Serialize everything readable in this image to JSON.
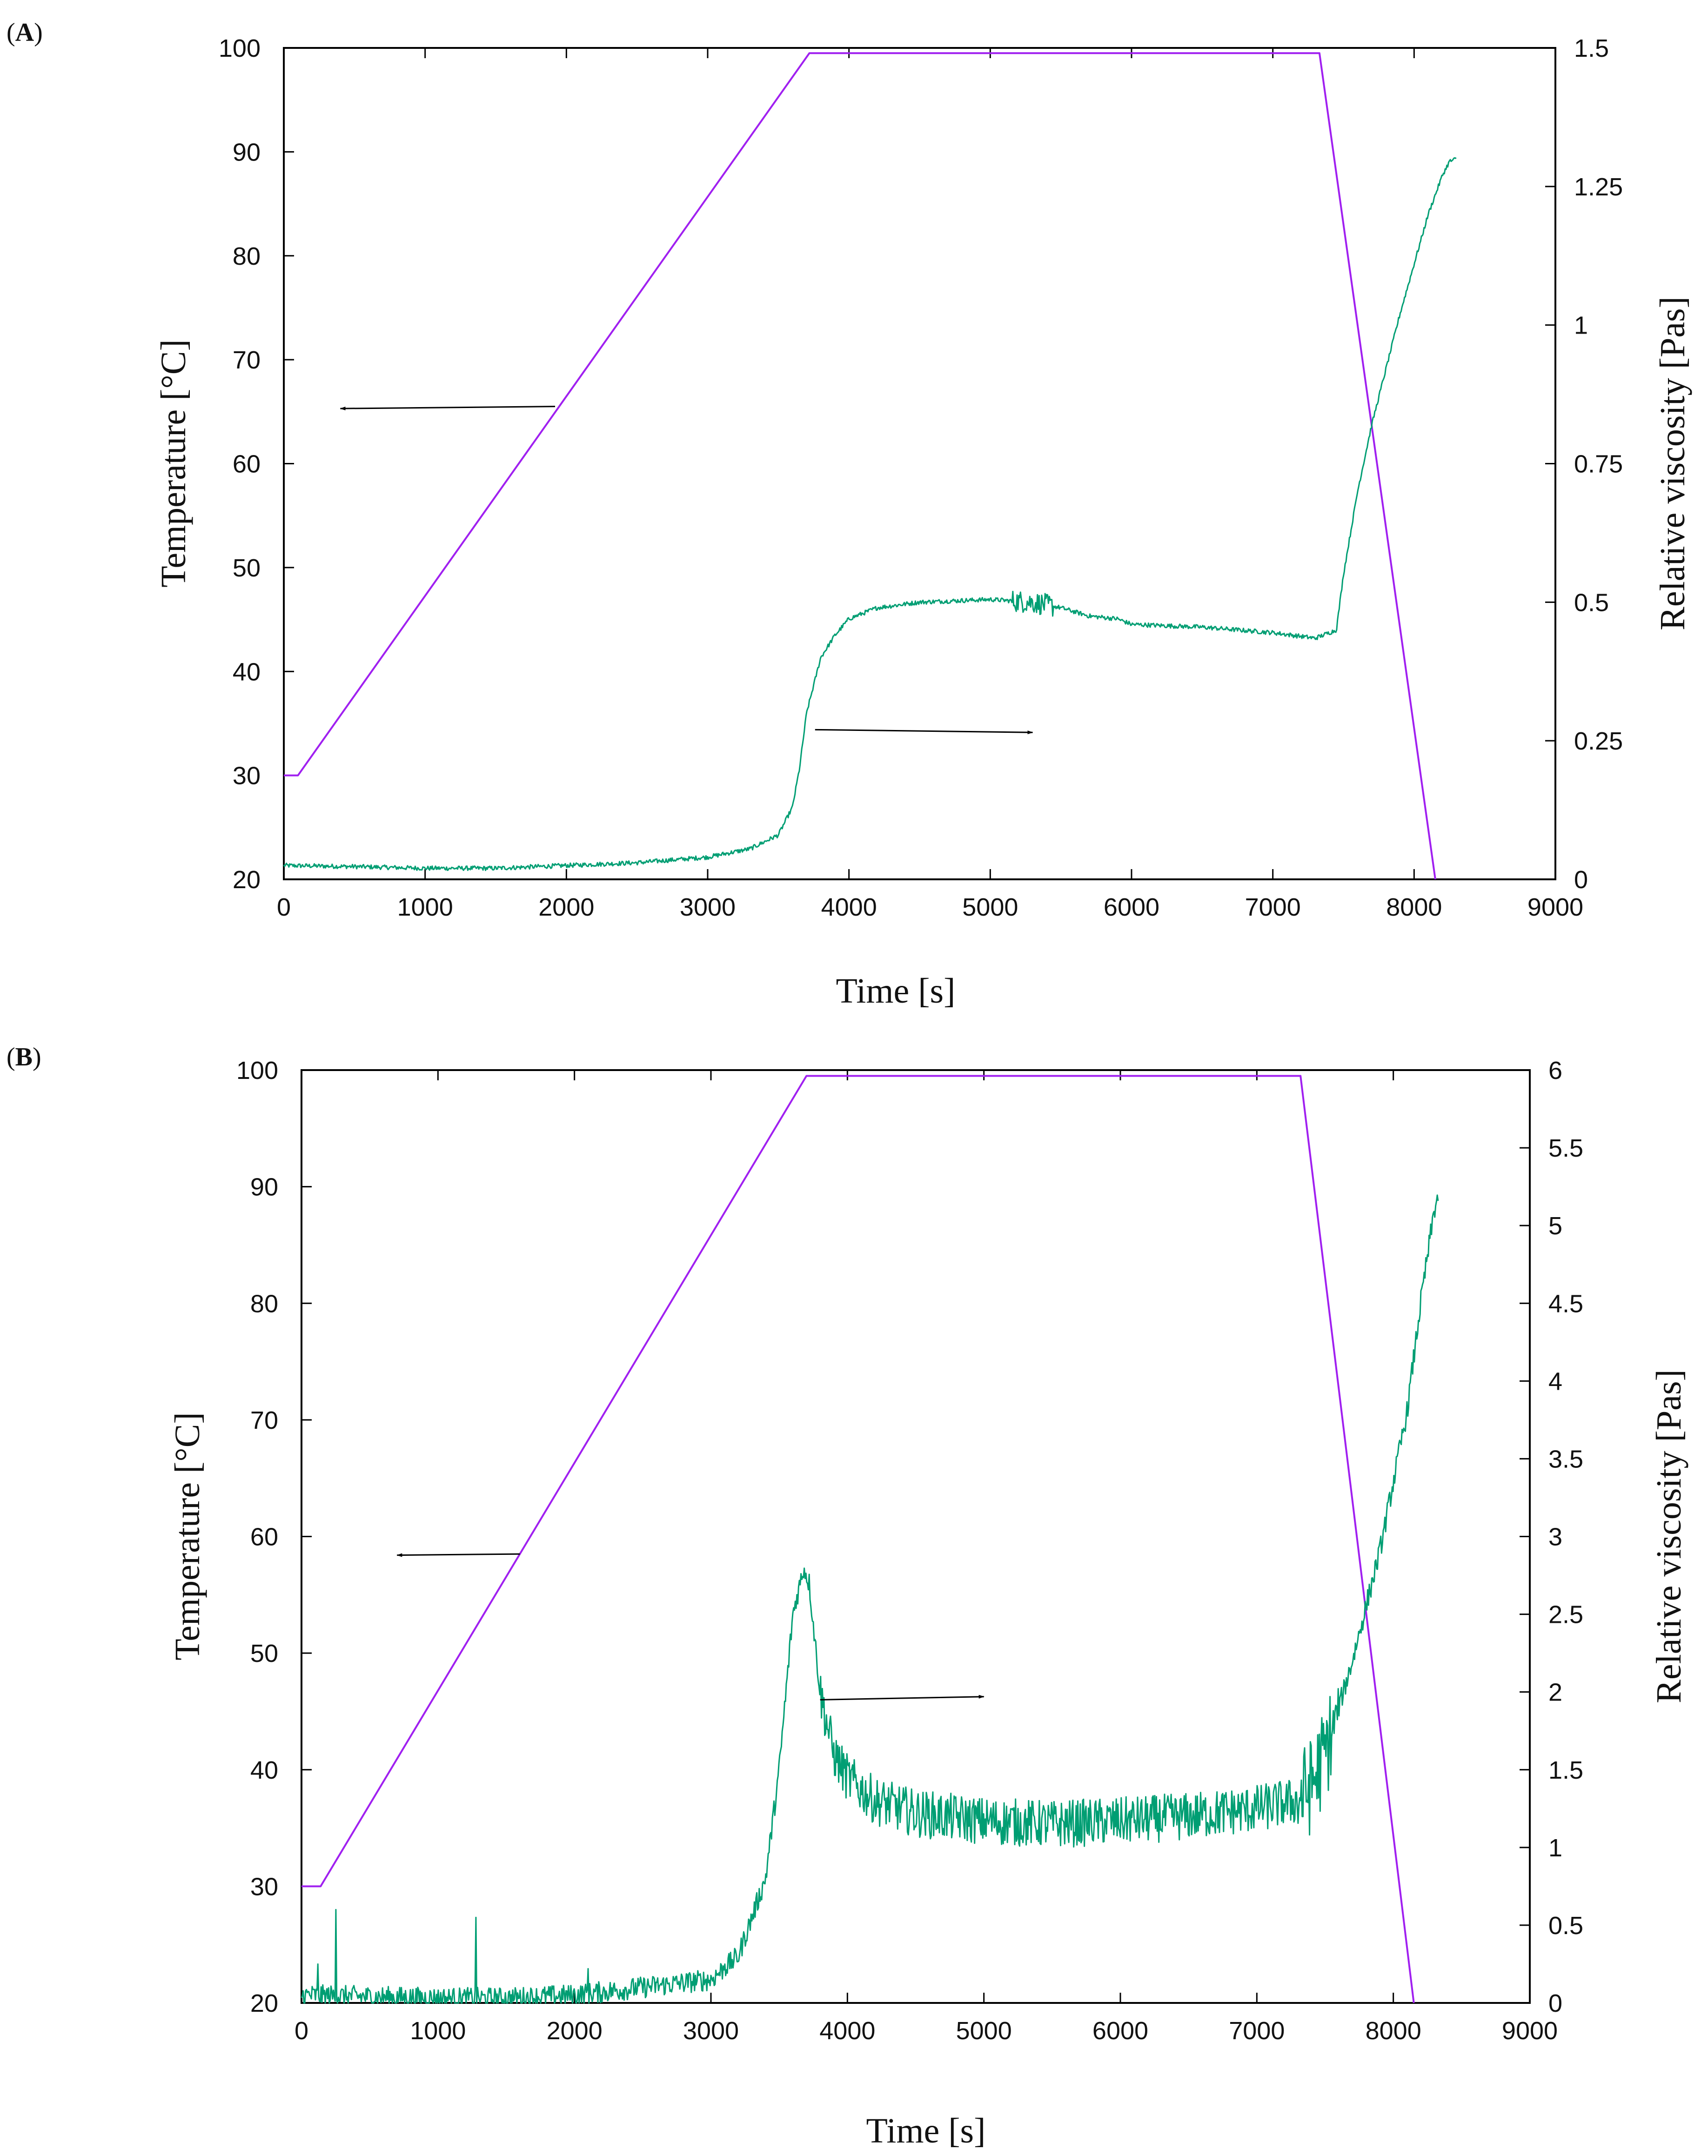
{
  "colors": {
    "temperature": "#a020f0",
    "viscosity": "#009e73",
    "axis": "#000000",
    "arrow": "#000000"
  },
  "chart_data": [
    {
      "panel": "A",
      "type": "line",
      "xlabel": "Time [s]",
      "ylabel_left": "Temperature [°C]",
      "ylabel_right": "Relative viscosity [Pas]",
      "xlim": [
        0,
        9000
      ],
      "ylim_left": [
        20,
        100
      ],
      "ylim_right": [
        0,
        1.5
      ],
      "x_ticks": [
        "0",
        "1000",
        "2000",
        "3000",
        "4000",
        "5000",
        "6000",
        "7000",
        "8000",
        "9000"
      ],
      "y_left_ticks": [
        "20",
        "30",
        "40",
        "50",
        "60",
        "70",
        "80",
        "90",
        "100"
      ],
      "y_right_ticks": [
        "0",
        "0.25",
        "0.5",
        "0.75",
        "1",
        "1.25",
        "1.5"
      ],
      "series": [
        {
          "name": "Temperature",
          "axis": "left",
          "color": "#a020f0",
          "points": [
            [
              0,
              30
            ],
            [
              100,
              30
            ],
            [
              3720,
              99.5
            ],
            [
              7330,
              99.5
            ],
            [
              8150,
              20
            ]
          ]
        },
        {
          "name": "Relative viscosity",
          "axis": "right",
          "color": "#009e73",
          "noise": 0.004,
          "points": [
            [
              0,
              0.025
            ],
            [
              500,
              0.023
            ],
            [
              1000,
              0.02
            ],
            [
              1500,
              0.02
            ],
            [
              2000,
              0.025
            ],
            [
              2500,
              0.03
            ],
            [
              3000,
              0.04
            ],
            [
              3300,
              0.055
            ],
            [
              3500,
              0.08
            ],
            [
              3600,
              0.13
            ],
            [
              3650,
              0.2
            ],
            [
              3700,
              0.3
            ],
            [
              3800,
              0.4
            ],
            [
              3900,
              0.44
            ],
            [
              4000,
              0.47
            ],
            [
              4200,
              0.49
            ],
            [
              4500,
              0.5
            ],
            [
              5000,
              0.505
            ],
            [
              5300,
              0.5
            ],
            [
              5500,
              0.49
            ],
            [
              5700,
              0.475
            ],
            [
              5900,
              0.47
            ],
            [
              6000,
              0.46
            ],
            [
              6500,
              0.455
            ],
            [
              7000,
              0.445
            ],
            [
              7300,
              0.435
            ],
            [
              7450,
              0.45
            ],
            [
              7500,
              0.55
            ],
            [
              7600,
              0.7
            ],
            [
              7700,
              0.82
            ],
            [
              7900,
              1.02
            ],
            [
              8100,
              1.2
            ],
            [
              8200,
              1.27
            ],
            [
              8250,
              1.295
            ],
            [
              8300,
              1.3
            ]
          ]
        }
      ],
      "annotations": [
        {
          "text": "",
          "arrow_from": [
            1920,
            65.5
          ],
          "arrow_to": [
            400,
            65.3
          ],
          "direction": "left",
          "axis": "left"
        },
        {
          "text": "",
          "arrow_from": [
            3760,
            0.27
          ],
          "arrow_to": [
            5300,
            0.265
          ],
          "direction": "right",
          "axis": "right"
        }
      ]
    },
    {
      "panel": "B",
      "type": "line",
      "xlabel": "Time [s]",
      "ylabel_left": "Temperature [°C]",
      "ylabel_right": "Relative viscosity [Pas]",
      "xlim": [
        0,
        9000
      ],
      "ylim_left": [
        20,
        100
      ],
      "ylim_right": [
        0,
        6
      ],
      "x_ticks": [
        "0",
        "1000",
        "2000",
        "3000",
        "4000",
        "5000",
        "6000",
        "7000",
        "8000",
        "9000"
      ],
      "y_left_ticks": [
        "20",
        "30",
        "40",
        "50",
        "60",
        "70",
        "80",
        "90",
        "100"
      ],
      "y_right_ticks": [
        "0",
        "0.5",
        "1",
        "1.5",
        "2",
        "2.5",
        "3",
        "3.5",
        "4",
        "4.5",
        "5",
        "5.5",
        "6"
      ],
      "series": [
        {
          "name": "Temperature",
          "axis": "left",
          "color": "#a020f0",
          "points": [
            [
              0,
              30
            ],
            [
              140,
              30
            ],
            [
              3700,
              99.5
            ],
            [
              7320,
              99.5
            ],
            [
              8150,
              20
            ]
          ]
        },
        {
          "name": "Relative viscosity",
          "axis": "right",
          "color": "#009e73",
          "noise": 0.07,
          "spikes": [
            [
              120,
              0.25
            ],
            [
              250,
              0.6
            ],
            [
              1280,
              0.55
            ],
            [
              2100,
              0.22
            ],
            [
              3100,
              0.25
            ]
          ],
          "points": [
            [
              0,
              0.05
            ],
            [
              500,
              0.04
            ],
            [
              1000,
              0.03
            ],
            [
              1500,
              0.03
            ],
            [
              2000,
              0.05
            ],
            [
              2500,
              0.1
            ],
            [
              3000,
              0.15
            ],
            [
              3200,
              0.3
            ],
            [
              3400,
              0.8
            ],
            [
              3500,
              1.5
            ],
            [
              3600,
              2.5
            ],
            [
              3680,
              2.8
            ],
            [
              3720,
              2.7
            ],
            [
              3800,
              2.0
            ],
            [
              3900,
              1.6
            ],
            [
              4000,
              1.45
            ],
            [
              4200,
              1.3
            ],
            [
              4500,
              1.22
            ],
            [
              5000,
              1.17
            ],
            [
              5500,
              1.15
            ],
            [
              6000,
              1.17
            ],
            [
              6500,
              1.2
            ],
            [
              7000,
              1.25
            ],
            [
              7300,
              1.3
            ],
            [
              7400,
              1.4
            ],
            [
              7500,
              1.6
            ],
            [
              7700,
              2.2
            ],
            [
              7900,
              2.9
            ],
            [
              8100,
              3.8
            ],
            [
              8200,
              4.5
            ],
            [
              8300,
              5.1
            ],
            [
              8330,
              5.2
            ]
          ]
        }
      ],
      "annotations": [
        {
          "text": "",
          "arrow_from": [
            1600,
            58.5
          ],
          "arrow_to": [
            700,
            58.4
          ],
          "direction": "left",
          "axis": "left"
        },
        {
          "text": "",
          "arrow_from": [
            3800,
            1.95
          ],
          "arrow_to": [
            5000,
            1.97
          ],
          "direction": "right",
          "axis": "right"
        }
      ]
    }
  ]
}
